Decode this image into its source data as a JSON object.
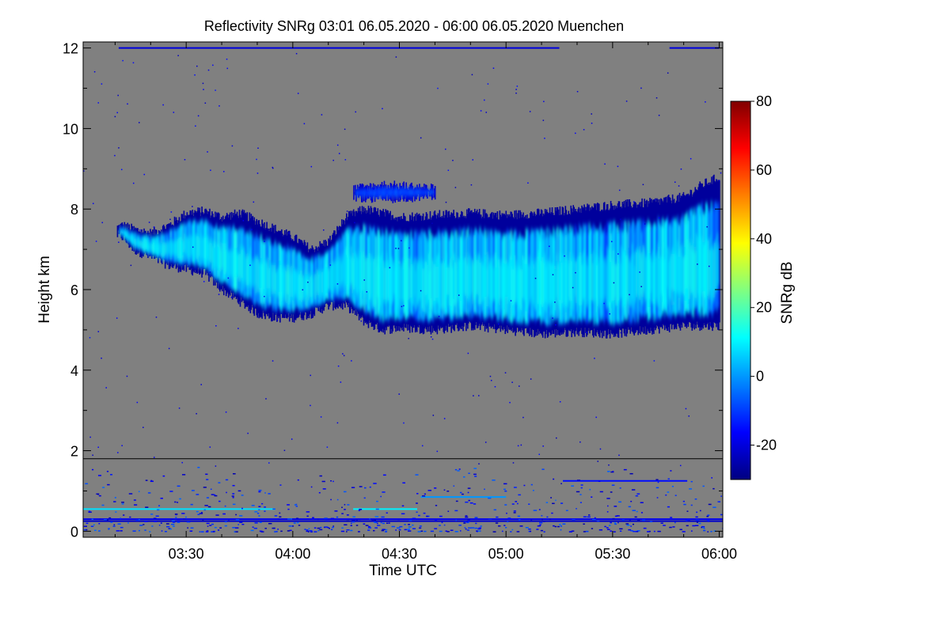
{
  "chart_data": {
    "type": "heatmap",
    "title": "Reflectivity SNRg   03:01 06.05.2020 - 06:00 06.05.2020 Muenchen",
    "xlabel": "Time UTC",
    "ylabel": "Height km",
    "x_ticks": [
      {
        "minutes": 210,
        "label": "03:30"
      },
      {
        "minutes": 240,
        "label": "04:00"
      },
      {
        "minutes": 270,
        "label": "04:30"
      },
      {
        "minutes": 300,
        "label": "05:00"
      },
      {
        "minutes": 330,
        "label": "05:30"
      },
      {
        "minutes": 360,
        "label": "06:00"
      }
    ],
    "xlim_minutes": [
      181,
      361
    ],
    "y_ticks": [
      {
        "value": 0,
        "label": "0"
      },
      {
        "value": 2,
        "label": "2"
      },
      {
        "value": 4,
        "label": "4"
      },
      {
        "value": 6,
        "label": "6"
      },
      {
        "value": 8,
        "label": "8"
      },
      {
        "value": 10,
        "label": "10"
      },
      {
        "value": 12,
        "label": "12"
      }
    ],
    "ylim_km": [
      -0.15,
      12.15
    ],
    "reference_line_km": 1.8,
    "colorbar": {
      "label": "SNRg dB",
      "range": [
        -30,
        80
      ],
      "ticks": [
        {
          "value": -20,
          "label": "-20"
        },
        {
          "value": 0,
          "label": "0"
        },
        {
          "value": 20,
          "label": "20"
        },
        {
          "value": 40,
          "label": "40"
        },
        {
          "value": 60,
          "label": "60"
        },
        {
          "value": 80,
          "label": "80"
        }
      ],
      "colors": [
        "#000080",
        "#0000ff",
        "#0080ff",
        "#00ffff",
        "#80ff80",
        "#ffff00",
        "#ff8000",
        "#ff0000",
        "#800000"
      ]
    },
    "background_color": "#808080",
    "cloud_layers": [
      {
        "name": "main-cloud",
        "top_km": [
          {
            "t": 190.5,
            "h": 7.55
          },
          {
            "t": 192,
            "h": 7.6
          },
          {
            "t": 195,
            "h": 7.5
          },
          {
            "t": 200,
            "h": 7.4
          },
          {
            "t": 205,
            "h": 7.6
          },
          {
            "t": 210,
            "h": 7.9
          },
          {
            "t": 215,
            "h": 7.95
          },
          {
            "t": 220,
            "h": 7.8
          },
          {
            "t": 225,
            "h": 7.9
          },
          {
            "t": 230,
            "h": 7.7
          },
          {
            "t": 235,
            "h": 7.5
          },
          {
            "t": 240,
            "h": 7.3
          },
          {
            "t": 245,
            "h": 7.0
          },
          {
            "t": 250,
            "h": 7.2
          },
          {
            "t": 255,
            "h": 7.8
          },
          {
            "t": 260,
            "h": 8.0
          },
          {
            "t": 265,
            "h": 7.9
          },
          {
            "t": 270,
            "h": 7.8
          },
          {
            "t": 280,
            "h": 7.85
          },
          {
            "t": 290,
            "h": 7.9
          },
          {
            "t": 300,
            "h": 7.85
          },
          {
            "t": 310,
            "h": 7.9
          },
          {
            "t": 320,
            "h": 8.0
          },
          {
            "t": 330,
            "h": 8.1
          },
          {
            "t": 340,
            "h": 8.15
          },
          {
            "t": 350,
            "h": 8.3
          },
          {
            "t": 355,
            "h": 8.6
          },
          {
            "t": 360,
            "h": 8.8
          }
        ],
        "base_km": [
          {
            "t": 190.5,
            "h": 7.35
          },
          {
            "t": 192,
            "h": 7.3
          },
          {
            "t": 195,
            "h": 7.0
          },
          {
            "t": 200,
            "h": 6.8
          },
          {
            "t": 205,
            "h": 6.6
          },
          {
            "t": 210,
            "h": 6.5
          },
          {
            "t": 215,
            "h": 6.4
          },
          {
            "t": 220,
            "h": 6.0
          },
          {
            "t": 225,
            "h": 5.7
          },
          {
            "t": 230,
            "h": 5.4
          },
          {
            "t": 235,
            "h": 5.3
          },
          {
            "t": 240,
            "h": 5.3
          },
          {
            "t": 245,
            "h": 5.4
          },
          {
            "t": 250,
            "h": 5.6
          },
          {
            "t": 255,
            "h": 5.6
          },
          {
            "t": 260,
            "h": 5.2
          },
          {
            "t": 265,
            "h": 5.0
          },
          {
            "t": 270,
            "h": 5.05
          },
          {
            "t": 280,
            "h": 5.0
          },
          {
            "t": 290,
            "h": 5.1
          },
          {
            "t": 300,
            "h": 5.0
          },
          {
            "t": 310,
            "h": 4.9
          },
          {
            "t": 320,
            "h": 4.95
          },
          {
            "t": 330,
            "h": 4.9
          },
          {
            "t": 340,
            "h": 5.0
          },
          {
            "t": 350,
            "h": 5.1
          },
          {
            "t": 360,
            "h": 5.1
          }
        ],
        "snr_db_range": [
          -25,
          15
        ]
      },
      {
        "name": "upper-patch",
        "top_km": [
          {
            "t": 257,
            "h": 8.5
          },
          {
            "t": 265,
            "h": 8.6
          },
          {
            "t": 275,
            "h": 8.55
          },
          {
            "t": 280,
            "h": 8.5
          }
        ],
        "base_km": [
          {
            "t": 257,
            "h": 8.3
          },
          {
            "t": 265,
            "h": 8.25
          },
          {
            "t": 275,
            "h": 8.3
          },
          {
            "t": 280,
            "h": 8.35
          }
        ],
        "snr_db_range": [
          -20,
          -5
        ]
      }
    ],
    "boundary_layer": {
      "height_range_km": [
        0,
        1.6
      ],
      "lines": [
        {
          "h": 0.25,
          "from": 181,
          "to": 361,
          "snr_db": -22
        },
        {
          "h": 0.3,
          "from": 181,
          "to": 361,
          "snr_db": -18
        },
        {
          "h": 0.55,
          "from": 181,
          "to": 235,
          "snr_db": 8
        },
        {
          "h": 0.55,
          "from": 257,
          "to": 275,
          "snr_db": 10
        },
        {
          "h": 0.85,
          "from": 276,
          "to": 300,
          "snr_db": 0
        },
        {
          "h": 1.25,
          "from": 316,
          "to": 351,
          "snr_db": -15
        },
        {
          "h": 12.0,
          "from": 191,
          "to": 315,
          "snr_db": -20
        },
        {
          "h": 12.0,
          "from": 346,
          "to": 360,
          "snr_db": -20
        }
      ]
    }
  }
}
